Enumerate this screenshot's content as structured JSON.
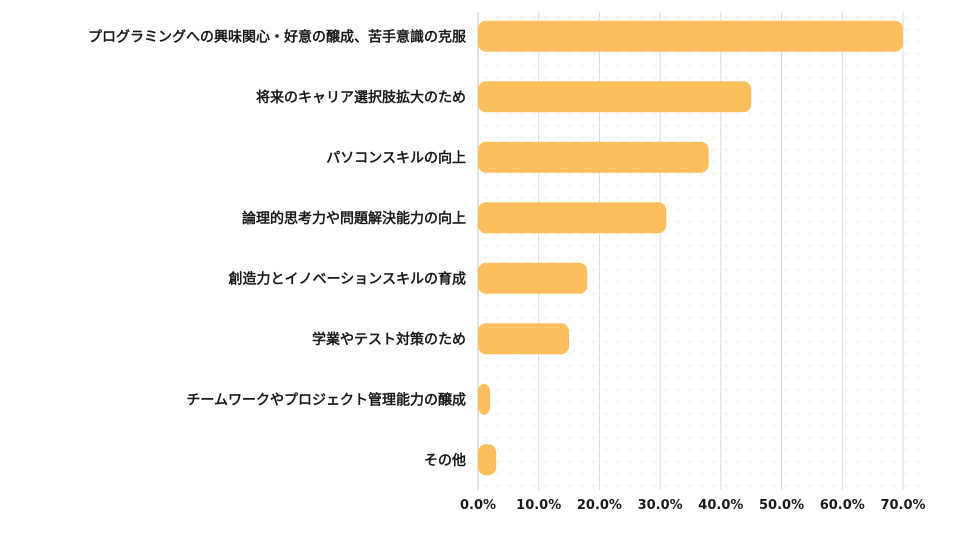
{
  "chart_data": {
    "type": "bar",
    "orientation": "horizontal",
    "categories": [
      "プログラミングへの興味関心・好意の醸成、苦手意識の克服",
      "将来のキャリア選択肢拡大のため",
      "パソコンスキルの向上",
      "論理的思考力や問題解決能力の向上",
      "創造力とイノベーションスキルの育成",
      "学業やテスト対策のため",
      "チームワークやプロジェクト管理能力の醸成",
      "その他"
    ],
    "values": [
      70.0,
      45.0,
      38.0,
      31.0,
      18.0,
      15.0,
      2.0,
      3.0
    ],
    "xlim": [
      0,
      70
    ],
    "ticks": [
      0,
      10,
      20,
      30,
      40,
      50,
      60,
      70
    ],
    "tick_labels": [
      "0.0%",
      "10.0%",
      "20.0%",
      "30.0%",
      "40.0%",
      "50.0%",
      "60.0%",
      "70.0%"
    ],
    "title": "",
    "xlabel": "",
    "ylabel": "",
    "grid": true,
    "legend": "none",
    "colors": {
      "bar": "#FDBF5E",
      "grid": "#d9d9d9",
      "plot_background_dots": "#f3efe4",
      "text": "#1a1a1a"
    }
  }
}
